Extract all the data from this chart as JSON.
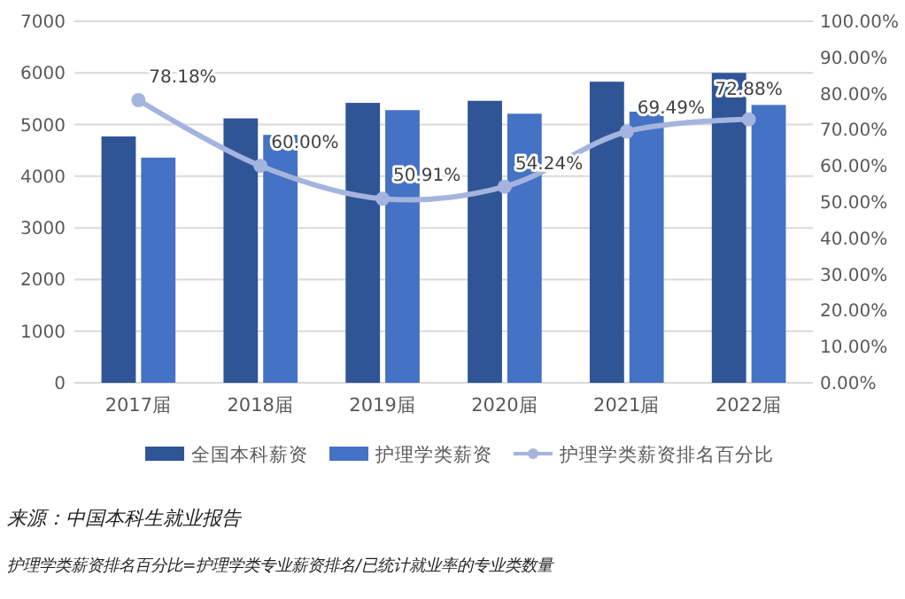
{
  "chart_data": {
    "type": "bar",
    "categories": [
      "2017届",
      "2018届",
      "2019届",
      "2020届",
      "2021届",
      "2022届"
    ],
    "series": [
      {
        "name": "全国本科薪资",
        "color": "#2f5597",
        "values": [
          4770,
          5120,
          5420,
          5460,
          5830,
          6000
        ]
      },
      {
        "name": "护理学类薪资",
        "color": "#4472c4",
        "values": [
          4360,
          4800,
          5280,
          5210,
          5250,
          5380
        ]
      },
      {
        "name": "护理学类薪资排名百分比",
        "type": "line",
        "axis": "y2",
        "color": "#a5b4de",
        "marker": "circle",
        "values": [
          78.18,
          60.0,
          50.91,
          54.24,
          69.49,
          72.88
        ],
        "value_labels": [
          "78.18%",
          "60.00%",
          "50.91%",
          "54.24%",
          "69.49%",
          "72.88%"
        ]
      }
    ],
    "ylim": [
      0,
      7000
    ],
    "yticks": [
      0,
      1000,
      2000,
      3000,
      4000,
      5000,
      6000,
      7000
    ],
    "y2lim": [
      0,
      100
    ],
    "y2ticks": [
      {
        "value": 0,
        "label": "0.00%"
      },
      {
        "value": 10,
        "label": "10.00%"
      },
      {
        "value": 20,
        "label": "20.00%"
      },
      {
        "value": 30,
        "label": "30.00%"
      },
      {
        "value": 40,
        "label": "40.00%"
      },
      {
        "value": 50,
        "label": "50.00%"
      },
      {
        "value": 60,
        "label": "60.00%"
      },
      {
        "value": 70,
        "label": "70.00%"
      },
      {
        "value": 80,
        "label": "80.00%"
      },
      {
        "value": 90,
        "label": "90.00%"
      },
      {
        "value": 100,
        "label": "100.00%"
      }
    ],
    "grid": "y",
    "legend": "bottom",
    "annotations": [
      "来源：中国本科生就业报告",
      "护理学类薪资排名百分比=护理学类专业薪资排名/已统计就业率的专业类数量"
    ]
  }
}
